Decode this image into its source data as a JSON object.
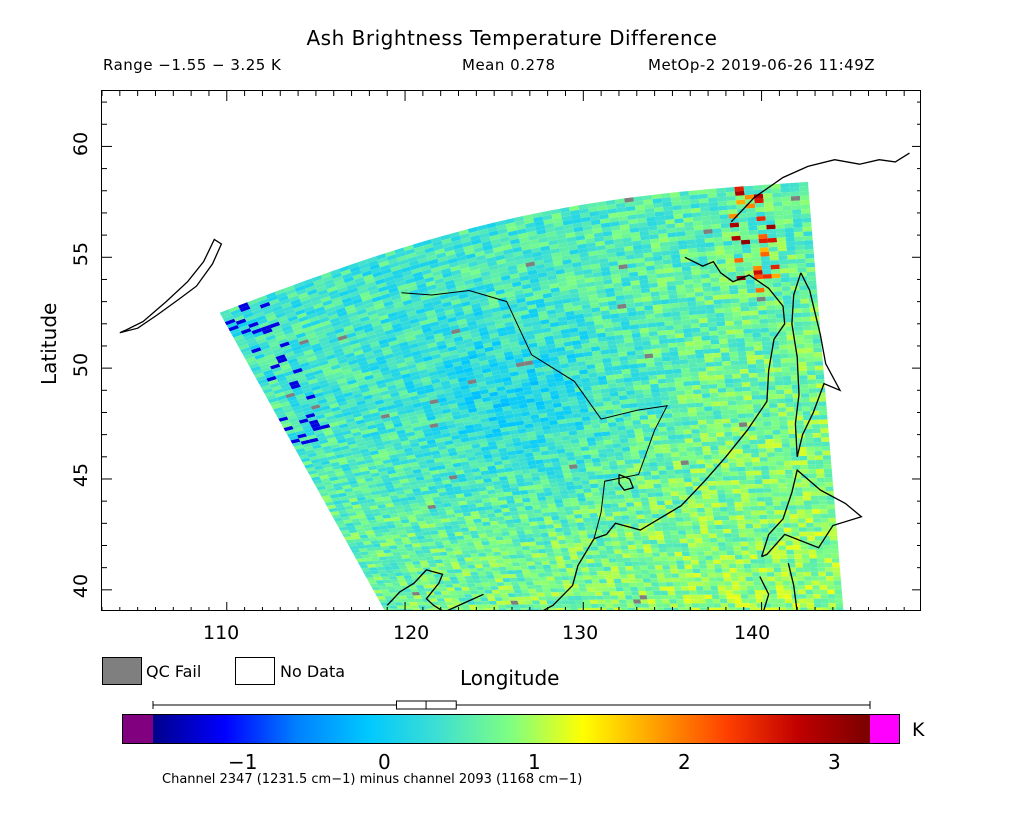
{
  "header": {
    "title": "Ash Brightness Temperature Difference",
    "range_text": "Range −1.55 − 3.25 K",
    "mean_text": "Mean 0.278",
    "instrument_text": "MetOp-2 2019-06-26 11:49Z"
  },
  "map": {
    "lon_range": [
      103,
      149
    ],
    "lat_range": [
      39,
      62.5
    ],
    "lon_ticks": [
      110,
      120,
      130,
      140
    ],
    "lat_ticks": [
      40,
      45,
      50,
      55,
      60
    ],
    "xlabel": "Longitude",
    "ylabel": "Latitude",
    "tick_labels_x": [
      "110",
      "120",
      "130",
      "140"
    ],
    "tick_labels_y": [
      "40",
      "45",
      "50",
      "55",
      "60"
    ]
  },
  "legend": {
    "qc_fail_label": "QC Fail",
    "no_data_label": "No Data",
    "qc_fail_color": "#7f7f7f",
    "no_data_color": "#ffffff"
  },
  "colorbar": {
    "unit": "K",
    "min": -1.55,
    "max": 3.25,
    "ticks": [
      -1,
      0,
      1,
      2,
      3
    ],
    "tick_labels": [
      "−1",
      "0",
      "1",
      "2",
      "3"
    ],
    "under_color": "#800080",
    "over_color": "#ff00ff",
    "colormap": [
      "#00008b",
      "#0000ff",
      "#0080ff",
      "#00c8ff",
      "#40e0d0",
      "#80ff80",
      "#ffff00",
      "#ffa000",
      "#ff4000",
      "#c00000",
      "#7a0000"
    ],
    "boxplot": {
      "whisker_low": -1.55,
      "q1": 0.08,
      "median": 0.278,
      "q3": 0.48,
      "whisker_high": 3.25
    }
  },
  "footnote": "Channel 2347 (1231.5 cm−1) minus channel 2093 (1168 cm−1)"
}
